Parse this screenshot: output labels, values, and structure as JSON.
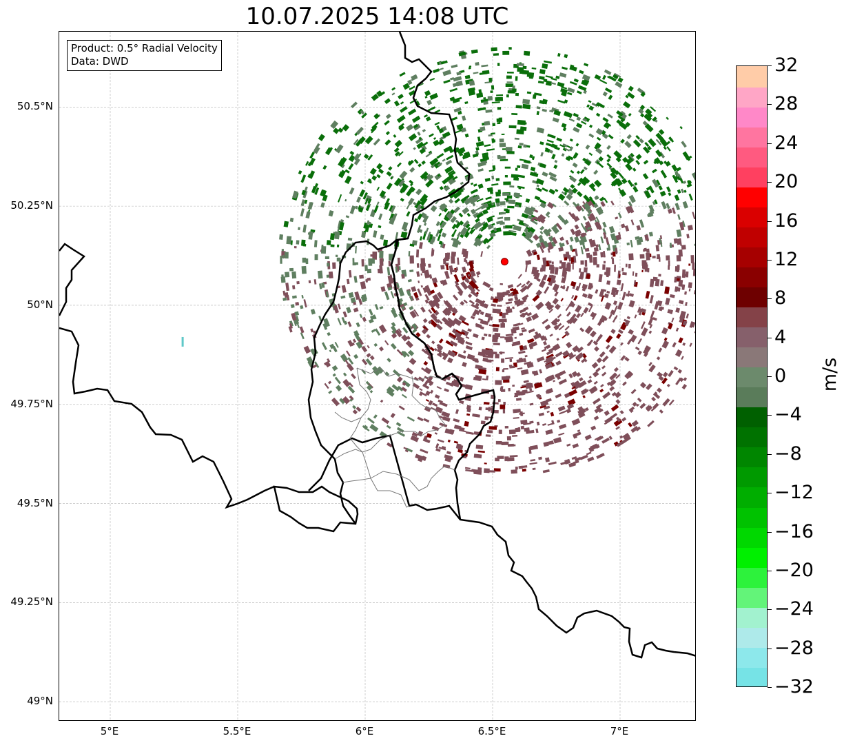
{
  "title": "10.07.2025 14:08 UTC",
  "info": {
    "product": "Product: 0.5° Radial Velocity",
    "data_source": "Data: DWD"
  },
  "map": {
    "lon_range": [
      4.8,
      7.3
    ],
    "lat_range": [
      48.95,
      50.69
    ],
    "radar_site": {
      "lon": 6.547,
      "lat": 50.11
    },
    "y_ticks": [
      {
        "value": 50.5,
        "label": "50.5°N"
      },
      {
        "value": 50.25,
        "label": "50.25°N"
      },
      {
        "value": 50.0,
        "label": "50°N"
      },
      {
        "value": 49.75,
        "label": "49.75°N"
      },
      {
        "value": 49.5,
        "label": "49.5°N"
      },
      {
        "value": 49.25,
        "label": "49.25°N"
      },
      {
        "value": 49.0,
        "label": "49°N"
      }
    ],
    "x_ticks": [
      {
        "value": 5.0,
        "label": "5°E"
      },
      {
        "value": 5.5,
        "label": "5.5°E"
      },
      {
        "value": 6.0,
        "label": "6°E"
      },
      {
        "value": 6.5,
        "label": "6.5°E"
      },
      {
        "value": 7.0,
        "label": "7°E"
      }
    ],
    "grid": true,
    "colors": {
      "inbound_strong": "#0a6e0a",
      "inbound_weak": "#5f7f60",
      "outbound_weak": "#7f4f5a",
      "outbound_strong": "#7a0000",
      "radar_marker": "#ff0000"
    }
  },
  "colorbar": {
    "unit": "m/s",
    "min": -32,
    "max": 32,
    "colors": [
      "#76e3e6",
      "#8de8eb",
      "#aeeaea",
      "#a2f2cf",
      "#63f479",
      "#2df23c",
      "#00f000",
      "#00d800",
      "#00c200",
      "#00ae00",
      "#009a00",
      "#008600",
      "#007200",
      "#006000",
      "#5a7c5a",
      "#6c8a6c",
      "#8a7878",
      "#86606b",
      "#844248",
      "#6e0000",
      "#8a0000",
      "#a60000",
      "#c00000",
      "#da0000",
      "#ff0000",
      "#ff4060",
      "#ff5a80",
      "#ff75a0",
      "#ff88c8",
      "#ffa6c6",
      "#ffcca8"
    ],
    "ticks": [
      {
        "value": 32,
        "label": "32"
      },
      {
        "value": 28,
        "label": "28"
      },
      {
        "value": 24,
        "label": "24"
      },
      {
        "value": 20,
        "label": "20"
      },
      {
        "value": 16,
        "label": "16"
      },
      {
        "value": 12,
        "label": "12"
      },
      {
        "value": 8,
        "label": "8"
      },
      {
        "value": 4,
        "label": "4"
      },
      {
        "value": 0,
        "label": "0"
      },
      {
        "value": -4,
        "label": "−4"
      },
      {
        "value": -8,
        "label": "−8"
      },
      {
        "value": -12,
        "label": "−12"
      },
      {
        "value": -16,
        "label": "−16"
      },
      {
        "value": -20,
        "label": "−20"
      },
      {
        "value": -24,
        "label": "−24"
      },
      {
        "value": -28,
        "label": "−28"
      },
      {
        "value": -32,
        "label": "−32"
      }
    ]
  }
}
